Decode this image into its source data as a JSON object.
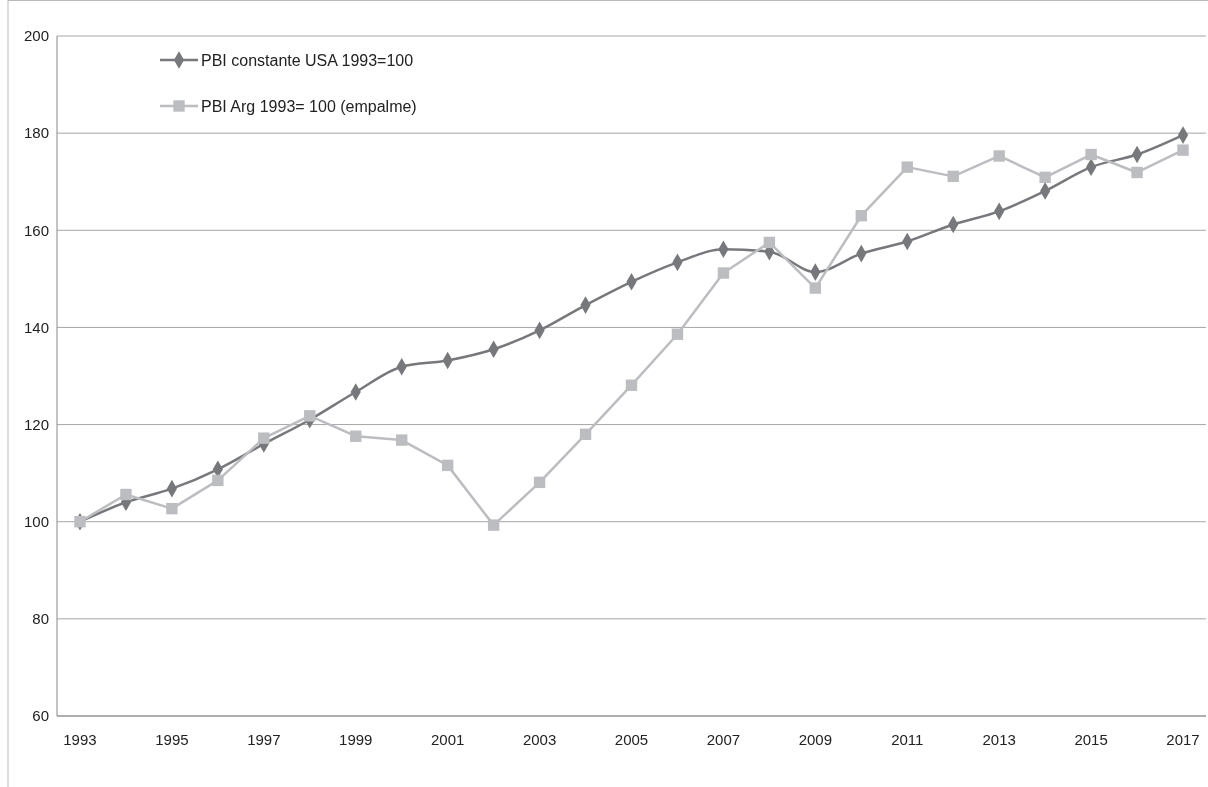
{
  "chart_data": {
    "type": "line",
    "x": [
      1993,
      1994,
      1995,
      1996,
      1997,
      1998,
      1999,
      2000,
      2001,
      2002,
      2003,
      2004,
      2005,
      2006,
      2007,
      2008,
      2009,
      2010,
      2011,
      2012,
      2013,
      2014,
      2015,
      2016,
      2017
    ],
    "series": [
      {
        "name": "PBI constante USA 1993=100",
        "color": "#77787b",
        "marker": "diamond",
        "values": [
          100,
          104,
          106.8,
          110.8,
          116,
          121,
          126.7,
          131.9,
          133.2,
          135.5,
          139.4,
          144.6,
          149.4,
          153.4,
          156.1,
          155.6,
          151.4,
          155.2,
          157.7,
          161.2,
          163.9,
          168.1,
          173,
          175.6,
          179.6
        ]
      },
      {
        "name": "PBI Arg 1993= 100 (empalme)",
        "color": "#bcbdc0",
        "marker": "square",
        "values": [
          100,
          105.6,
          102.7,
          108.5,
          117.2,
          121.8,
          117.6,
          116.8,
          111.6,
          99.3,
          108.1,
          118,
          128.1,
          138.6,
          151.2,
          157.5,
          148.1,
          163,
          173,
          171.1,
          175.3,
          170.9,
          175.6,
          171.9,
          176.5
        ]
      }
    ],
    "xlim": [
      1992.5,
      2017.5
    ],
    "xticks": [
      1993,
      1995,
      1997,
      1999,
      2001,
      2003,
      2005,
      2007,
      2009,
      2011,
      2013,
      2015,
      2017
    ],
    "ylim": [
      60,
      200
    ],
    "yticks": [
      60,
      80,
      100,
      120,
      140,
      160,
      180,
      200
    ],
    "grid": "y",
    "legend": "top left"
  }
}
